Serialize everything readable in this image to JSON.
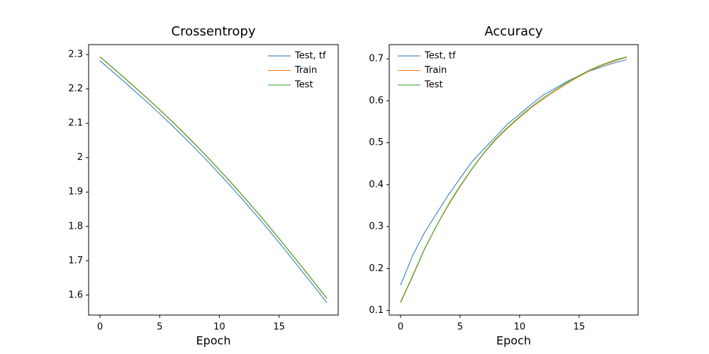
{
  "chart_data": [
    {
      "type": "line",
      "title": "Crossentropy",
      "x_label": "Epoch",
      "x": [
        0,
        1,
        2,
        3,
        4,
        5,
        6,
        7,
        8,
        9,
        10,
        11,
        12,
        13,
        14,
        15,
        16,
        17,
        18,
        19
      ],
      "xlim": [
        -0.95,
        19.95
      ],
      "xticks": [
        0,
        5,
        10,
        15
      ],
      "ylim": [
        1.542,
        2.329
      ],
      "yticks": [
        1.6,
        1.7,
        1.8,
        1.9,
        2.0,
        2.1,
        2.2,
        2.3
      ],
      "legend": "upper right",
      "series": [
        {
          "name": "Test, tf",
          "color": "#1f77b4",
          "values": [
            2.282,
            2.252,
            2.222,
            2.191,
            2.16,
            2.128,
            2.095,
            2.061,
            2.026,
            1.99,
            1.953,
            1.915,
            1.876,
            1.836,
            1.795,
            1.753,
            1.71,
            1.666,
            1.623,
            1.578
          ]
        },
        {
          "name": "Train",
          "color": "#ff7f0e",
          "values": [
            2.293,
            2.263,
            2.233,
            2.202,
            2.171,
            2.139,
            2.106,
            2.072,
            2.037,
            2.001,
            1.964,
            1.926,
            1.887,
            1.847,
            1.806,
            1.764,
            1.721,
            1.678,
            1.634,
            1.59
          ]
        },
        {
          "name": "Test",
          "color": "#2ca02c",
          "values": [
            2.294,
            2.264,
            2.234,
            2.203,
            2.172,
            2.14,
            2.107,
            2.073,
            2.038,
            2.002,
            1.965,
            1.927,
            1.888,
            1.848,
            1.807,
            1.765,
            1.722,
            1.679,
            1.635,
            1.591
          ]
        }
      ]
    },
    {
      "type": "line",
      "title": "Accuracy",
      "x_label": "Epoch",
      "x": [
        0,
        1,
        2,
        3,
        4,
        5,
        6,
        7,
        8,
        9,
        10,
        11,
        12,
        13,
        14,
        15,
        16,
        17,
        18,
        19
      ],
      "xlim": [
        -0.95,
        19.95
      ],
      "xticks": [
        0,
        5,
        10,
        15
      ],
      "ylim": [
        0.089,
        0.734
      ],
      "yticks": [
        0.1,
        0.2,
        0.3,
        0.4,
        0.5,
        0.6,
        0.7
      ],
      "legend": "upper left",
      "series": [
        {
          "name": "Test, tf",
          "color": "#1f77b4",
          "values": [
            0.16,
            0.23,
            0.285,
            0.33,
            0.375,
            0.415,
            0.455,
            0.485,
            0.515,
            0.545,
            0.568,
            0.592,
            0.614,
            0.63,
            0.646,
            0.66,
            0.672,
            0.682,
            0.691,
            0.698
          ]
        },
        {
          "name": "Train",
          "color": "#ff7f0e",
          "values": [
            0.118,
            0.18,
            0.245,
            0.3,
            0.35,
            0.395,
            0.437,
            0.475,
            0.507,
            0.535,
            0.56,
            0.584,
            0.604,
            0.623,
            0.641,
            0.658,
            0.673,
            0.685,
            0.695,
            0.704
          ]
        },
        {
          "name": "Test",
          "color": "#2ca02c",
          "values": [
            0.12,
            0.182,
            0.246,
            0.301,
            0.352,
            0.397,
            0.438,
            0.476,
            0.509,
            0.537,
            0.562,
            0.586,
            0.607,
            0.626,
            0.644,
            0.66,
            0.675,
            0.687,
            0.697,
            0.705
          ]
        }
      ]
    }
  ]
}
